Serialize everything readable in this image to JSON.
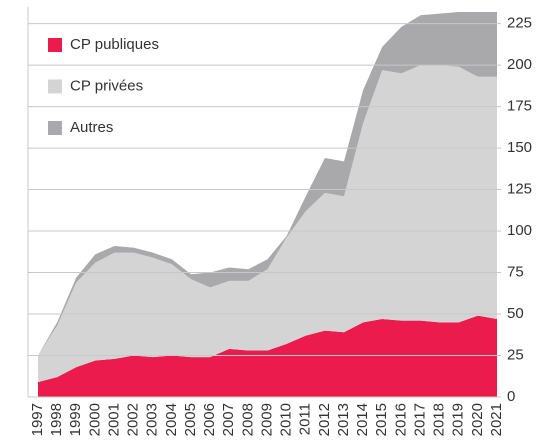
{
  "chart_data": {
    "type": "stacked_area",
    "categories": [
      "1997",
      "1998",
      "1999",
      "2000",
      "2001",
      "2002",
      "2003",
      "2004",
      "2005",
      "2006",
      "2007",
      "2008",
      "2009",
      "2010",
      "2011",
      "2012",
      "2013",
      "2014",
      "2015",
      "2016",
      "2017",
      "2018",
      "2019",
      "2020",
      "2021"
    ],
    "series": [
      {
        "name": "CP publiques",
        "color": "#ec1b4d",
        "values": [
          9,
          12,
          18,
          22,
          23,
          25,
          24,
          25,
          24,
          24,
          29,
          28,
          28,
          32,
          37,
          40,
          39,
          45,
          47,
          46,
          46,
          45,
          45,
          49,
          47
        ]
      },
      {
        "name": "CP privées",
        "color": "#d4d4d4",
        "values": [
          16,
          31,
          51,
          59,
          64,
          62,
          60,
          55,
          47,
          42,
          41,
          42,
          49,
          64,
          75,
          83,
          82,
          120,
          150,
          149,
          154,
          155,
          154,
          144,
          146
        ]
      },
      {
        "name": "Autres",
        "color": "#a9a8ab",
        "values": [
          0,
          2,
          3,
          5,
          4,
          3,
          3,
          3,
          3,
          9,
          8,
          7,
          6,
          1,
          9,
          21,
          21,
          20,
          14,
          28,
          30,
          31,
          33,
          39,
          39
        ]
      }
    ],
    "ylim": [
      0,
      235
    ],
    "yticks": [
      0,
      25,
      50,
      75,
      100,
      125,
      150,
      175,
      200,
      225
    ],
    "grid": true,
    "legend": "top-left"
  }
}
